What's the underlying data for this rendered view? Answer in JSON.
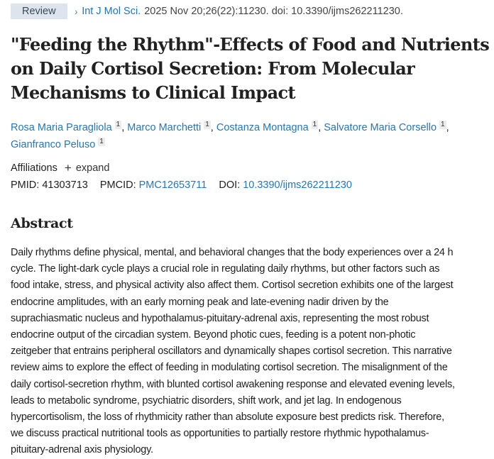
{
  "citation": {
    "badge": "Review",
    "chevron_icon": "›",
    "journal": "Int J Mol Sci.",
    "details": "2025 Nov 20;26(22):11230. doi: 10.3390/ijms262211230."
  },
  "title": {
    "full": "\"Feeding the Rhythm\"-Effects of Food and Nutrients on Daily Cortisol Secretion: From Molecular Mechanisms to Clinical Impact",
    "lines": [
      "\"Feeding the Rhythm\"-Effects of Food and Nutrients",
      "on Daily Cortisol Secretion: From Molecular",
      "Mechanisms to Clinical Impact"
    ]
  },
  "authors": [
    {
      "name": "Rosa Maria Paragliola",
      "affiliation": "1"
    },
    {
      "name": "Marco Marchetti",
      "affiliation": "1"
    },
    {
      "name": "Costanza Montagna",
      "affiliation": "1"
    },
    {
      "name": "Salvatore Maria Corsello",
      "affiliation": "1"
    },
    {
      "name": "Gianfranco Peluso",
      "affiliation": "1"
    }
  ],
  "affiliations": {
    "label": "Affiliations",
    "expand_icon": "+",
    "expand_label": "expand"
  },
  "identifiers": {
    "pmid_label": "PMID:",
    "pmid": "41303713",
    "pmcid_label": "PMCID:",
    "pmcid": "PMC12653711",
    "doi_label": "DOI:",
    "doi": "10.3390/ijms262211230"
  },
  "abstract": {
    "heading": "Abstract",
    "lines": [
      "Daily rhythms define physical, mental, and behavioral changes that the body experiences over a 24 h",
      "cycle. The light-dark cycle plays a crucial role in regulating daily rhythms, but other factors such as",
      "food intake, stress, and physical activity also affect them. Cortisol secretion exhibits one of the largest",
      "endocrine amplitudes, with an early morning peak and late-evening nadir driven by the",
      "suprachiasmatic nucleus and hypothalamus-pituitary-adrenal axis, representing the most robust",
      "endocrine output of the circadian system. Beyond photic cues, feeding is a potent non-photic",
      "zeitgeber that entrains peripheral oscillators and dynamically shapes cortisol secretion. This narrative",
      "review aims to explore the effect of feeding in modulating cortisol secretion. The misalignment of the",
      "daily cortisol-secretion rhythm, with blunted cortisol awakening response and elevated evening levels,",
      "leads to metabolic syndrome, psychiatric disorders, shift work, and jet lag. In endogenous",
      "hypercortisolism, the loss of rhythmicity rather than absolute exposure best predicts risk. Therefore,",
      "we discuss practical nutritional tools as opportunities to partially restore rhythmic hypothalamus-",
      "pituitary-adrenal axis physiology."
    ]
  },
  "colors": {
    "link": "#2277b7",
    "badge_bg": "#dde4ee",
    "text": "#212121",
    "muted": "#444444"
  }
}
